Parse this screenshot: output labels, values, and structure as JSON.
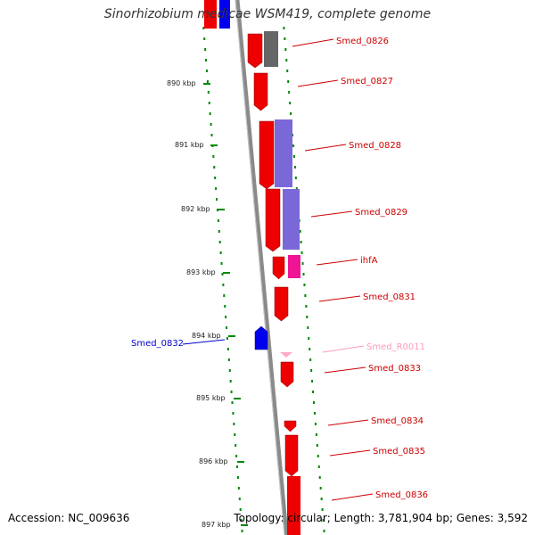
{
  "title": "Sinorhizobium medicae WSM419, complete genome",
  "accession": "Accession: NC_009636",
  "topology": "Topology: circular; Length: 3,781,904 bp; Genes: 3,592",
  "colors": {
    "backbone": "#8a8a8a",
    "cds": "#ee0000",
    "cds_reverse": "#0000ee",
    "gray_feature": "#666666",
    "purple_feature": "#7b68d8",
    "ihfA": "#ee1493",
    "rna": "#ffaacc",
    "label_red": "#cc0000",
    "label_blue": "#0000cc",
    "label_pink": "#ff99bb",
    "dots": "#008800"
  },
  "ticks": [
    "890 kbp",
    "891 kbp",
    "892 kbp",
    "893 kbp",
    "894 kbp",
    "895 kbp",
    "896 kbp",
    "897 kbp"
  ],
  "genes": [
    {
      "label": "Smed_0826",
      "color": "label_red"
    },
    {
      "label": "Smed_0827",
      "color": "label_red"
    },
    {
      "label": "Smed_0828",
      "color": "label_red"
    },
    {
      "label": "Smed_0829",
      "color": "label_red"
    },
    {
      "label": "ihfA",
      "color": "label_red"
    },
    {
      "label": "Smed_0831",
      "color": "label_red"
    },
    {
      "label": "Smed_0832",
      "color": "label_blue"
    },
    {
      "label": "Smed_R0011",
      "color": "label_pink"
    },
    {
      "label": "Smed_0833",
      "color": "label_red"
    },
    {
      "label": "Smed_0834",
      "color": "label_red"
    },
    {
      "label": "Smed_0835",
      "color": "label_red"
    },
    {
      "label": "Smed_0836",
      "color": "label_red"
    }
  ]
}
